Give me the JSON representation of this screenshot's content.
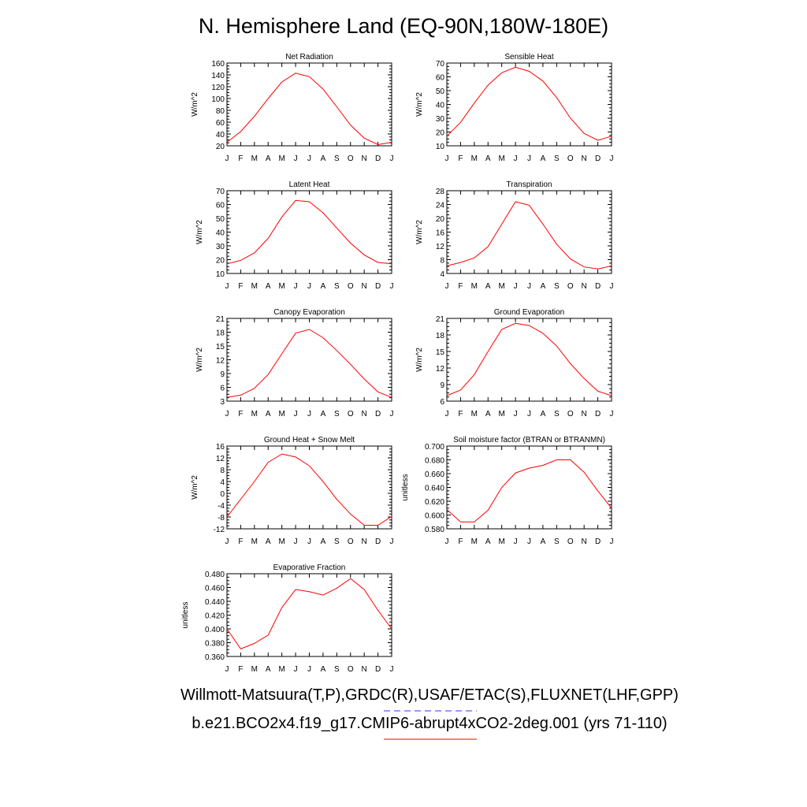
{
  "page": {
    "title": "N. Hemisphere Land (EQ-90N,180W-180E)",
    "footer_line1": "Willmott-Matsuura(T,P),GRDC(R),USAF/ETAC(S),FLUXNET(LHF,GPP)",
    "footer_line2": "b.e21.BCO2x4.f19_g17.CMIP6-abrupt4xCO2-2deg.001 (yrs 71-110)",
    "colors": {
      "model_line": "#ff0000",
      "obs_legend": "#3333ff",
      "axis": "#000000"
    }
  },
  "chart_data": [
    {
      "type": "line",
      "title": "Net Radiation",
      "ylabel": "W/m^2",
      "x": [
        "J",
        "F",
        "M",
        "A",
        "M",
        "J",
        "J",
        "A",
        "S",
        "O",
        "N",
        "D",
        "J"
      ],
      "ylim": [
        20,
        160
      ],
      "yticks": [
        "20",
        "40",
        "60",
        "80",
        "100",
        "120",
        "140",
        "160"
      ],
      "ytick_values": [
        20,
        40,
        60,
        80,
        100,
        120,
        140,
        160
      ],
      "series": [
        {
          "values": [
            26,
            44,
            70,
            100,
            128,
            143,
            137,
            116,
            86,
            55,
            33,
            22,
            26
          ]
        }
      ]
    },
    {
      "type": "line",
      "title": "Sensible Heat",
      "ylabel": "W/m^2",
      "x": [
        "J",
        "F",
        "M",
        "A",
        "M",
        "J",
        "J",
        "A",
        "S",
        "O",
        "N",
        "D",
        "J"
      ],
      "ylim": [
        10,
        70
      ],
      "yticks": [
        "10",
        "20",
        "30",
        "40",
        "50",
        "60",
        "70"
      ],
      "ytick_values": [
        10,
        20,
        30,
        40,
        50,
        60,
        70
      ],
      "series": [
        {
          "values": [
            17,
            27,
            41,
            54,
            63,
            67,
            64,
            57,
            45,
            30,
            19,
            14,
            17
          ]
        }
      ]
    },
    {
      "type": "line",
      "title": "Latent Heat",
      "ylabel": "W/m^2",
      "x": [
        "J",
        "F",
        "M",
        "A",
        "M",
        "J",
        "J",
        "A",
        "S",
        "O",
        "N",
        "D",
        "J"
      ],
      "ylim": [
        10,
        70
      ],
      "yticks": [
        "10",
        "20",
        "30",
        "40",
        "50",
        "60",
        "70"
      ],
      "ytick_values": [
        10,
        20,
        30,
        40,
        50,
        60,
        70
      ],
      "series": [
        {
          "values": [
            17,
            19.5,
            25,
            35.5,
            51,
            63,
            62,
            54,
            43,
            32,
            23.5,
            18,
            17
          ]
        }
      ]
    },
    {
      "type": "line",
      "title": "Transpiration",
      "ylabel": "W/m^2",
      "x": [
        "J",
        "F",
        "M",
        "A",
        "M",
        "J",
        "J",
        "A",
        "S",
        "O",
        "N",
        "D",
        "J"
      ],
      "ylim": [
        4,
        28
      ],
      "yticks": [
        "4",
        "8",
        "12",
        "16",
        "20",
        "24",
        "28"
      ],
      "ytick_values": [
        4,
        8,
        12,
        16,
        20,
        24,
        28
      ],
      "series": [
        {
          "values": [
            6.2,
            7.2,
            8.5,
            11.8,
            18.3,
            24.8,
            23.8,
            18.3,
            12.5,
            8.2,
            5.9,
            5.3,
            6.2
          ]
        }
      ]
    },
    {
      "type": "line",
      "title": "Canopy Evaporation",
      "ylabel": "W/m^2",
      "x": [
        "J",
        "F",
        "M",
        "A",
        "M",
        "J",
        "J",
        "A",
        "S",
        "O",
        "N",
        "D",
        "J"
      ],
      "ylim": [
        3,
        21
      ],
      "yticks": [
        "3",
        "6",
        "9",
        "12",
        "15",
        "18",
        "21"
      ],
      "ytick_values": [
        3,
        6,
        9,
        12,
        15,
        18,
        21
      ],
      "series": [
        {
          "values": [
            3.8,
            4.3,
            5.8,
            8.8,
            13.3,
            17.8,
            18.6,
            16.8,
            14,
            11,
            7.8,
            5,
            3.8
          ]
        }
      ]
    },
    {
      "type": "line",
      "title": "Ground Evaporation",
      "ylabel": "W/m^2",
      "x": [
        "J",
        "F",
        "M",
        "A",
        "M",
        "J",
        "J",
        "A",
        "S",
        "O",
        "N",
        "D",
        "J"
      ],
      "ylim": [
        6,
        21
      ],
      "yticks": [
        "6",
        "9",
        "12",
        "15",
        "18",
        "21"
      ],
      "ytick_values": [
        6,
        9,
        12,
        15,
        18,
        21
      ],
      "series": [
        {
          "values": [
            7,
            8,
            10.8,
            15,
            19,
            20.1,
            19.7,
            18.3,
            16,
            12.8,
            10.1,
            7.8,
            7
          ]
        }
      ]
    },
    {
      "type": "line",
      "title": "Ground Heat + Snow Melt",
      "ylabel": "W/m^2",
      "x": [
        "J",
        "F",
        "M",
        "A",
        "M",
        "J",
        "J",
        "A",
        "S",
        "O",
        "N",
        "D",
        "J"
      ],
      "ylim": [
        -12,
        16
      ],
      "yticks": [
        "-12",
        "-8",
        "-4",
        "0",
        "4",
        "8",
        "12",
        "16"
      ],
      "ytick_values": [
        -12,
        -8,
        -4,
        0,
        4,
        8,
        12,
        16
      ],
      "series": [
        {
          "values": [
            -8,
            -2,
            4,
            10.5,
            13.3,
            12.3,
            9.3,
            4,
            -2,
            -7,
            -10.8,
            -10.8,
            -7.8
          ]
        }
      ]
    },
    {
      "type": "line",
      "title": "Soil moisture factor (BTRAN or BTRANMN)",
      "ylabel": "unitless",
      "x": [
        "J",
        "F",
        "M",
        "A",
        "M",
        "J",
        "J",
        "A",
        "S",
        "O",
        "N",
        "D",
        "J"
      ],
      "ylim": [
        0.58,
        0.7
      ],
      "yticks": [
        "0.580",
        "0.600",
        "0.620",
        "0.640",
        "0.660",
        "0.680",
        "0.700"
      ],
      "ytick_values": [
        0.58,
        0.6,
        0.62,
        0.64,
        0.66,
        0.68,
        0.7
      ],
      "series": [
        {
          "values": [
            0.608,
            0.59,
            0.59,
            0.607,
            0.64,
            0.661,
            0.668,
            0.672,
            0.68,
            0.68,
            0.662,
            0.635,
            0.61
          ]
        }
      ]
    },
    {
      "type": "line",
      "title": "Evaporative Fraction",
      "ylabel": "unitless",
      "x": [
        "J",
        "F",
        "M",
        "A",
        "M",
        "J",
        "J",
        "A",
        "S",
        "O",
        "N",
        "D",
        "J"
      ],
      "ylim": [
        0.36,
        0.48
      ],
      "yticks": [
        "0.360",
        "0.380",
        "0.400",
        "0.420",
        "0.440",
        "0.460",
        "0.480"
      ],
      "ytick_values": [
        0.36,
        0.38,
        0.4,
        0.42,
        0.44,
        0.46,
        0.48
      ],
      "series": [
        {
          "values": [
            0.4,
            0.371,
            0.379,
            0.391,
            0.431,
            0.457,
            0.454,
            0.449,
            0.459,
            0.473,
            0.457,
            0.427,
            0.4
          ]
        }
      ]
    }
  ]
}
